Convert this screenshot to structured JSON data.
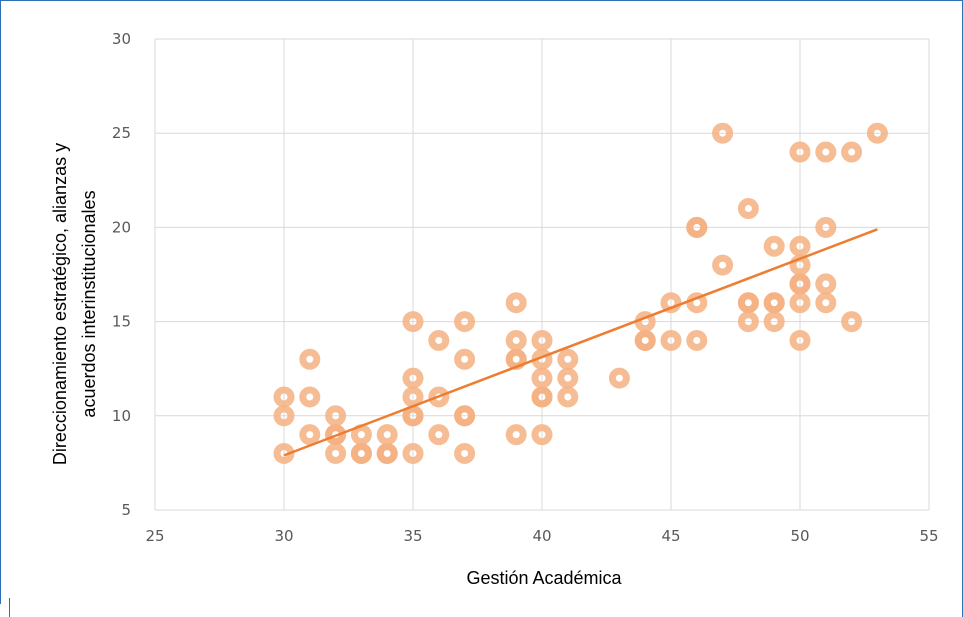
{
  "chart_data": {
    "type": "scatter",
    "xlabel": "Gestión Académica",
    "ylabel_lines": [
      "Direccionamiento estratégico, alianzas y",
      "acuerdos interinstitucionales"
    ],
    "xlim": [
      25,
      55
    ],
    "ylim": [
      5,
      30
    ],
    "x_ticks": [
      "25",
      "30",
      "35",
      "40",
      "45",
      "50",
      "55"
    ],
    "y_ticks": [
      "5",
      "10",
      "15",
      "20",
      "25",
      "30"
    ],
    "grid": true,
    "legend": "none",
    "marker_color": "#f4b183",
    "trendline_color": "#ed7d31",
    "points": [
      [
        30,
        11
      ],
      [
        30,
        10
      ],
      [
        30,
        8
      ],
      [
        31,
        13
      ],
      [
        31,
        11
      ],
      [
        31,
        9
      ],
      [
        32,
        10
      ],
      [
        32,
        9
      ],
      [
        32,
        9
      ],
      [
        32,
        8
      ],
      [
        33,
        9
      ],
      [
        33,
        8
      ],
      [
        33,
        8
      ],
      [
        34,
        9
      ],
      [
        34,
        8
      ],
      [
        34,
        8
      ],
      [
        35,
        15
      ],
      [
        35,
        12
      ],
      [
        35,
        11
      ],
      [
        35,
        10
      ],
      [
        35,
        10
      ],
      [
        35,
        8
      ],
      [
        36,
        14
      ],
      [
        36,
        11
      ],
      [
        36,
        9
      ],
      [
        37,
        15
      ],
      [
        37,
        13
      ],
      [
        37,
        10
      ],
      [
        37,
        10
      ],
      [
        37,
        8
      ],
      [
        39,
        16
      ],
      [
        39,
        14
      ],
      [
        39,
        13
      ],
      [
        39,
        13
      ],
      [
        39,
        9
      ],
      [
        40,
        14
      ],
      [
        40,
        13
      ],
      [
        40,
        12
      ],
      [
        40,
        11
      ],
      [
        40,
        11
      ],
      [
        40,
        9
      ],
      [
        41,
        13
      ],
      [
        41,
        12
      ],
      [
        41,
        11
      ],
      [
        43,
        12
      ],
      [
        44,
        15
      ],
      [
        44,
        14
      ],
      [
        44,
        14
      ],
      [
        45,
        16
      ],
      [
        45,
        14
      ],
      [
        46,
        20
      ],
      [
        46,
        20
      ],
      [
        46,
        16
      ],
      [
        46,
        14
      ],
      [
        47,
        25
      ],
      [
        47,
        18
      ],
      [
        48,
        21
      ],
      [
        48,
        16
      ],
      [
        48,
        16
      ],
      [
        48,
        15
      ],
      [
        49,
        19
      ],
      [
        49,
        16
      ],
      [
        49,
        16
      ],
      [
        49,
        15
      ],
      [
        50,
        24
      ],
      [
        50,
        19
      ],
      [
        50,
        18
      ],
      [
        50,
        17
      ],
      [
        50,
        17
      ],
      [
        50,
        16
      ],
      [
        50,
        14
      ],
      [
        51,
        24
      ],
      [
        51,
        20
      ],
      [
        51,
        17
      ],
      [
        51,
        16
      ],
      [
        52,
        24
      ],
      [
        52,
        15
      ],
      [
        53,
        25
      ]
    ],
    "trendline": {
      "x": [
        30,
        53
      ],
      "y": [
        7.9,
        19.9
      ]
    }
  }
}
